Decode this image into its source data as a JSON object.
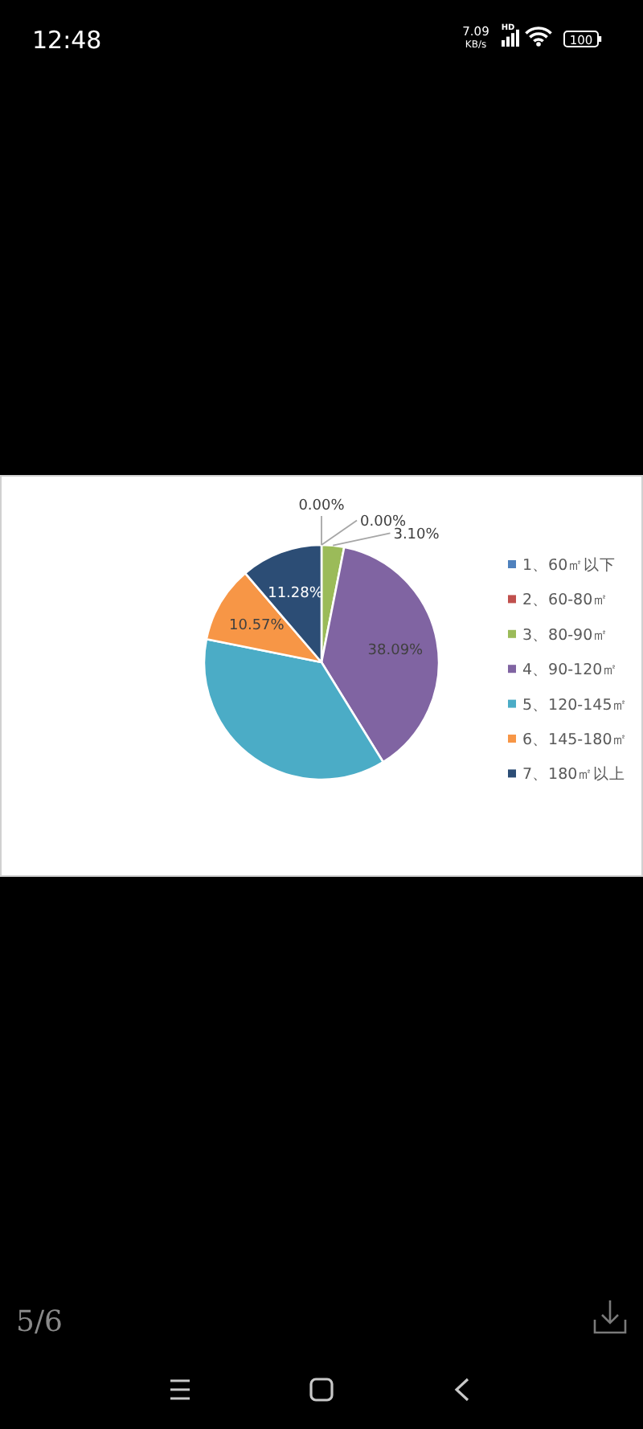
{
  "chart_data": {
    "type": "pie",
    "categories": [
      "1、60㎡以下",
      "2、60-80㎡",
      "3、80-90㎡",
      "4、90-120㎡",
      "5、120-145㎡",
      "6、145-180㎡",
      "7、180㎡以上"
    ],
    "values": [
      0,
      0,
      3.1,
      38.09,
      36.96,
      10.57,
      11.28
    ],
    "colors": [
      "#4f81bd",
      "#c0504d",
      "#9bbb59",
      "#8064a2",
      "#4bacc6",
      "#f79646",
      "#2c4d75"
    ],
    "value_labels": [
      "0.00%",
      "0.00%",
      "3.10%",
      "38.09%",
      null,
      "10.57%",
      "11.28%"
    ],
    "legend": "right",
    "annotations": [
      "12:48",
      "7.09",
      "KB/s",
      "HD",
      "100",
      "5/6"
    ]
  }
}
